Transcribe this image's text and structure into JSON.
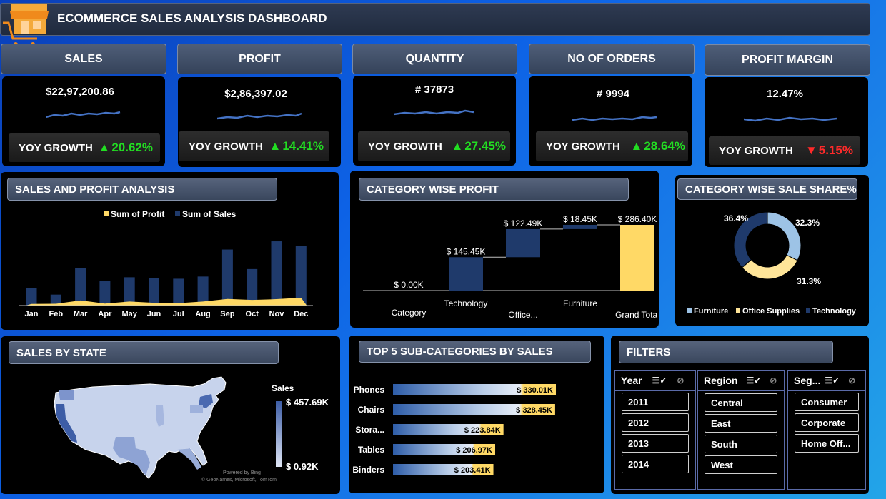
{
  "header": {
    "title": "ECOMMERCE SALES ANALYSIS DASHBOARD",
    "logo_icon": "shop-cart-icon"
  },
  "kpis": [
    {
      "label": "SALES",
      "value": "$22,97,200.86",
      "yoy_label": "YOY GROWTH",
      "yoy": "20.62%",
      "trend": "up"
    },
    {
      "label": "PROFIT",
      "value": "$2,86,397.02",
      "yoy_label": "YOY GROWTH",
      "yoy": "14.41%",
      "trend": "up"
    },
    {
      "label": "QUANTITY",
      "value": "# 37873",
      "yoy_label": "YOY GROWTH",
      "yoy": "27.45%",
      "trend": "up"
    },
    {
      "label": "NO OF ORDERS",
      "value": "# 9994",
      "yoy_label": "YOY GROWTH",
      "yoy": "28.64%",
      "trend": "up"
    },
    {
      "label": "PROFIT MARGIN",
      "value": "12.47%",
      "yoy_label": "YOY GROWTH",
      "yoy": "5.15%",
      "trend": "down"
    }
  ],
  "colors": {
    "sales": "#1f3a6b",
    "profit": "#ffd966",
    "up": "#22dd22",
    "down": "#ff2a2a",
    "spark": "#4472c4",
    "furniture": "#9dc3e6",
    "office": "#ffe599",
    "technology": "#1f3a6b"
  },
  "sections": {
    "sales_profit": "SALES AND PROFIT ANALYSIS",
    "category_profit": "CATEGORY WISE PROFIT",
    "category_share": "CATEGORY WISE SALE SHARE%",
    "sales_state": "SALES BY STATE",
    "top5": "TOP 5 SUB-CATEGORIES BY SALES",
    "filters": "FILTERS"
  },
  "chart_data": [
    {
      "type": "bar",
      "id": "sales_profit",
      "categories": [
        "Jan",
        "Feb",
        "Mar",
        "Apr",
        "May",
        "Jun",
        "Jul",
        "Aug",
        "Sep",
        "Oct",
        "Nov",
        "Dec"
      ],
      "series": [
        {
          "name": "Sum of Profit",
          "values": [
            9000,
            10000,
            28000,
            11000,
            22000,
            15000,
            13000,
            22000,
            36000,
            31000,
            35000,
            43000
          ]
        },
        {
          "name": "Sum of Sales",
          "values": [
            94000,
            60000,
            205000,
            137000,
            155000,
            152000,
            147000,
            159000,
            307000,
            200000,
            352000,
            325000
          ]
        }
      ],
      "legend": "top"
    },
    {
      "type": "bar",
      "id": "category_profit",
      "subtype": "waterfall",
      "categories": [
        "Category",
        "Technology",
        "Office...",
        "Furniture",
        "Grand Total"
      ],
      "values": [
        0,
        145.45,
        122.49,
        18.45,
        286.4
      ],
      "data_labels": [
        "$ 0.00K",
        "$ 145.45K",
        "$ 122.49K",
        "$ 18.45K",
        "$ 286.40K"
      ]
    },
    {
      "type": "pie",
      "id": "category_share",
      "subtype": "donut",
      "labels": [
        "Furniture",
        "Office Supplies",
        "Technology"
      ],
      "values": [
        32.3,
        31.3,
        36.4
      ],
      "data_labels": [
        "32.3%",
        "31.3%",
        "36.4%"
      ],
      "legend": "bottom"
    },
    {
      "type": "bar",
      "id": "top5",
      "orientation": "horizontal",
      "categories": [
        "Phones",
        "Chairs",
        "Stora...",
        "Tables",
        "Binders"
      ],
      "values": [
        330.01,
        328.45,
        223.84,
        206.97,
        203.41
      ],
      "data_labels": [
        "$ 330.01K",
        "$ 328.45K",
        "$ 223.84K",
        "$ 206.97K",
        "$ 203.41K"
      ]
    }
  ],
  "map": {
    "legend_title": "Sales",
    "max": "$ 457.69K",
    "min": "$ 0.92K",
    "credit1": "Powered by Bing",
    "credit2": "© GeoNames, Microsoft, TomTom"
  },
  "filters": {
    "year": {
      "title": "Year",
      "items": [
        "2011",
        "2012",
        "2013",
        "2014"
      ]
    },
    "region": {
      "title": "Region",
      "items": [
        "Central",
        "East",
        "South",
        "West"
      ]
    },
    "segment": {
      "title": "Seg...",
      "items": [
        "Consumer",
        "Corporate",
        "Home Off..."
      ]
    }
  }
}
